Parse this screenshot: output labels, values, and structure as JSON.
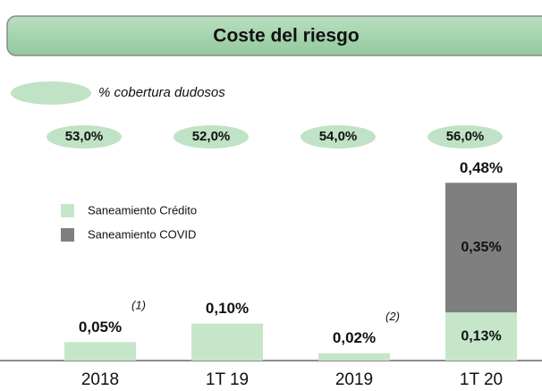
{
  "chart_data": {
    "type": "stacked_bar",
    "title": "Coste del riesgo",
    "categories": [
      "2018",
      "1T 19",
      "2019",
      "1T 20"
    ],
    "series": [
      {
        "name": "Saneamiento  Crédito",
        "color": "#c6e6c9",
        "values": [
          0.05,
          0.1,
          0.02,
          0.13
        ],
        "value_labels": [
          null,
          null,
          null,
          "0,13%"
        ]
      },
      {
        "name": "Saneamiento  COVID",
        "color": "#7f7f7f",
        "values": [
          null,
          null,
          null,
          0.35
        ],
        "value_labels": [
          null,
          null,
          null,
          "0,35%"
        ]
      }
    ],
    "totals": [
      0.05,
      0.1,
      0.02,
      0.48
    ],
    "total_labels": [
      "0,05%",
      "0,10%",
      "0,02%",
      "0,48%"
    ],
    "notes": [
      "(1)",
      null,
      "(2)",
      null
    ],
    "coverage": {
      "label": "% cobertura dudosos",
      "color": "#bfe3c4",
      "values": [
        53.0,
        52.0,
        54.0,
        56.0
      ],
      "value_labels": [
        "53,0%",
        "52,0%",
        "54,0%",
        "56,0%"
      ]
    }
  }
}
